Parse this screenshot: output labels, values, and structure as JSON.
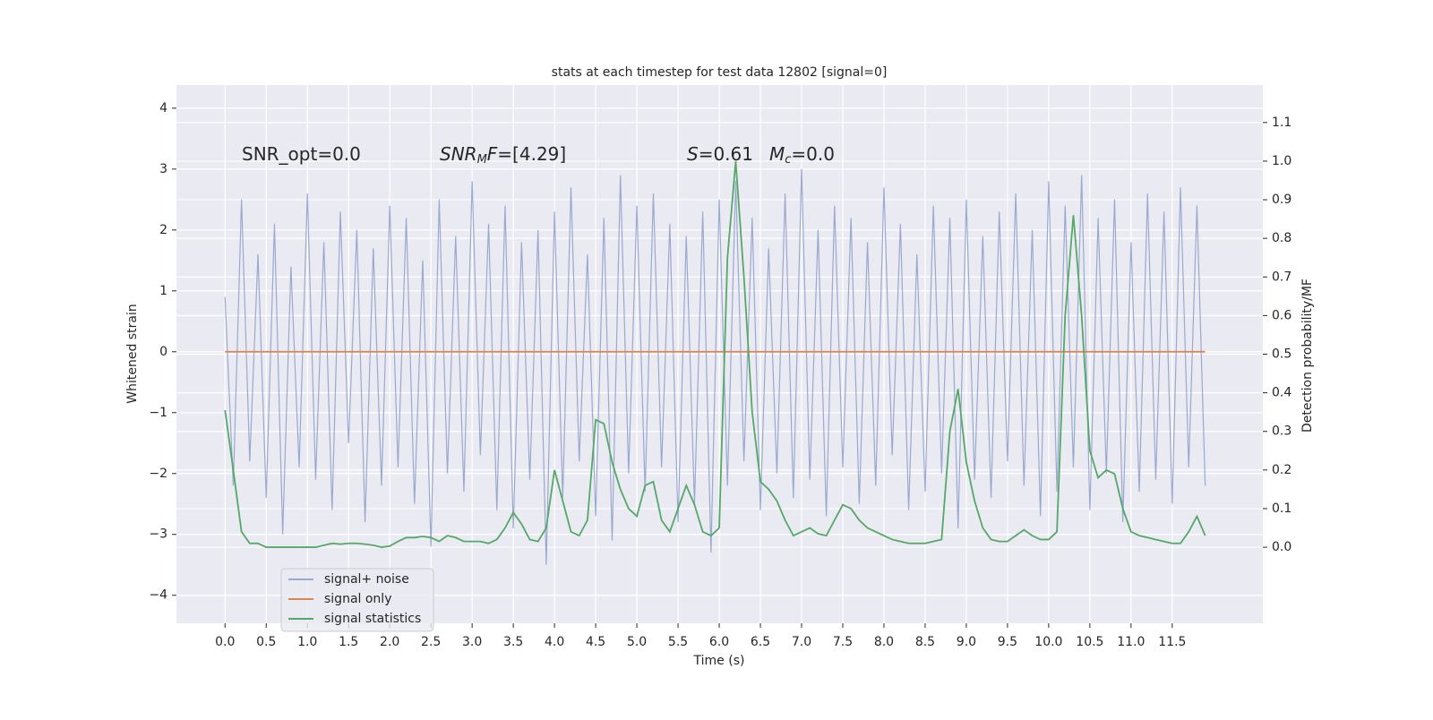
{
  "chart_data": {
    "type": "line",
    "title": "stats at each timestep for test data 12802 [signal=0]",
    "xlabel": "Time (s)",
    "ylabel": "Whitened strain",
    "y2label": "Detection probability/MF",
    "annotations": [
      [
        {
          "text": "SNR_opt=0.0"
        }
      ],
      [
        {
          "text": "SNR",
          "style": "italic"
        },
        {
          "text": "M",
          "style": "sub"
        },
        {
          "text": "F",
          "style": "italic"
        },
        {
          "text": "=[4.29]"
        }
      ],
      [
        {
          "text": "S",
          "style": "italic"
        },
        {
          "text": "=0.61"
        }
      ],
      [
        {
          "text": "M",
          "style": "italic"
        },
        {
          "text": "c",
          "style": "sub"
        },
        {
          "text": "=0.0"
        }
      ]
    ],
    "x": [
      0.0,
      0.1,
      0.2,
      0.3,
      0.4,
      0.5,
      0.6,
      0.7,
      0.8,
      0.9,
      1.0,
      1.1,
      1.2,
      1.3,
      1.4,
      1.5,
      1.6,
      1.7,
      1.8,
      1.9,
      2.0,
      2.1,
      2.2,
      2.3,
      2.4,
      2.5,
      2.6,
      2.7,
      2.8,
      2.9,
      3.0,
      3.1,
      3.2,
      3.3,
      3.4,
      3.5,
      3.6,
      3.7,
      3.8,
      3.9,
      4.0,
      4.1,
      4.2,
      4.3,
      4.4,
      4.5,
      4.6,
      4.7,
      4.8,
      4.9,
      5.0,
      5.1,
      5.2,
      5.3,
      5.4,
      5.5,
      5.6,
      5.7,
      5.8,
      5.9,
      6.0,
      6.1,
      6.2,
      6.3,
      6.4,
      6.5,
      6.6,
      6.7,
      6.8,
      6.9,
      7.0,
      7.1,
      7.2,
      7.3,
      7.4,
      7.5,
      7.6,
      7.7,
      7.8,
      7.9,
      8.0,
      8.1,
      8.2,
      8.3,
      8.4,
      8.5,
      8.6,
      8.7,
      8.8,
      8.9,
      9.0,
      9.1,
      9.2,
      9.3,
      9.4,
      9.5,
      9.6,
      9.7,
      9.8,
      9.9,
      10.0,
      10.1,
      10.2,
      10.3,
      10.4,
      10.5,
      10.6,
      10.7,
      10.8,
      10.9,
      11.0,
      11.1,
      11.2,
      11.3,
      11.4,
      11.5,
      11.6,
      11.7,
      11.8,
      11.9
    ],
    "series": [
      {
        "name": "signal+ noise",
        "color": "#8c9ec9",
        "values": [
          0.9,
          -2.2,
          2.5,
          -1.8,
          1.6,
          -2.4,
          2.1,
          -3.0,
          1.4,
          -1.9,
          2.6,
          -2.1,
          1.8,
          -2.6,
          2.3,
          -1.5,
          2.0,
          -2.8,
          1.7,
          -2.2,
          2.4,
          -1.9,
          2.2,
          -2.5,
          1.5,
          -3.2,
          2.5,
          -2.0,
          1.9,
          -2.3,
          2.8,
          -1.7,
          2.1,
          -2.6,
          2.4,
          -2.9,
          1.8,
          -2.1,
          2.0,
          -3.5,
          2.3,
          -2.4,
          2.7,
          -1.8,
          1.6,
          -2.7,
          2.2,
          -3.1,
          2.9,
          -2.0,
          2.4,
          -2.3,
          2.6,
          -1.9,
          2.1,
          -2.8,
          1.9,
          -2.5,
          2.3,
          -3.3,
          2.5,
          -2.2,
          2.8,
          -1.8,
          2.2,
          -2.6,
          1.7,
          -2.0,
          2.6,
          -2.4,
          3.0,
          -2.1,
          2.0,
          -2.7,
          2.4,
          -1.9,
          2.2,
          -2.5,
          1.8,
          -2.2,
          2.7,
          -1.7,
          2.1,
          -2.6,
          1.6,
          -2.3,
          2.4,
          -2.0,
          2.2,
          -2.9,
          2.5,
          -2.1,
          1.9,
          -2.4,
          2.3,
          -1.8,
          2.6,
          -2.2,
          2.0,
          -2.7,
          2.8,
          -2.3,
          2.4,
          -1.9,
          2.9,
          -2.6,
          2.2,
          -2.0,
          2.5,
          -2.8,
          1.8,
          -2.3,
          2.6,
          -2.1,
          2.3,
          -2.5,
          2.7,
          -1.9,
          2.4,
          -2.2
        ]
      },
      {
        "name": "signal only",
        "color": "#dd8452",
        "values": [
          0,
          0,
          0,
          0,
          0,
          0,
          0,
          0,
          0,
          0,
          0,
          0,
          0,
          0,
          0,
          0,
          0,
          0,
          0,
          0,
          0,
          0,
          0,
          0,
          0,
          0,
          0,
          0,
          0,
          0,
          0,
          0,
          0,
          0,
          0,
          0,
          0,
          0,
          0,
          0,
          0,
          0,
          0,
          0,
          0,
          0,
          0,
          0,
          0,
          0,
          0,
          0,
          0,
          0,
          0,
          0,
          0,
          0,
          0,
          0,
          0,
          0,
          0,
          0,
          0,
          0,
          0,
          0,
          0,
          0,
          0,
          0,
          0,
          0,
          0,
          0,
          0,
          0,
          0,
          0,
          0,
          0,
          0,
          0,
          0,
          0,
          0,
          0,
          0,
          0,
          0,
          0,
          0,
          0,
          0,
          0,
          0,
          0,
          0,
          0,
          0,
          0,
          0,
          0,
          0,
          0,
          0,
          0,
          0,
          0,
          0,
          0,
          0,
          0,
          0,
          0,
          0,
          0,
          0,
          0
        ]
      },
      {
        "name": "signal statistics",
        "color": "#55a868",
        "axis": "y2",
        "values": [
          0.355,
          0.2,
          0.04,
          0.01,
          0.01,
          0.0,
          0.0,
          0.0,
          0.0,
          0.0,
          0.0,
          0.0,
          0.005,
          0.01,
          0.008,
          0.01,
          0.01,
          0.008,
          0.005,
          0.0,
          0.003,
          0.015,
          0.025,
          0.025,
          0.028,
          0.025,
          0.015,
          0.03,
          0.025,
          0.015,
          0.015,
          0.015,
          0.01,
          0.02,
          0.05,
          0.09,
          0.06,
          0.02,
          0.015,
          0.05,
          0.2,
          0.12,
          0.04,
          0.03,
          0.07,
          0.33,
          0.32,
          0.22,
          0.15,
          0.1,
          0.08,
          0.16,
          0.17,
          0.07,
          0.04,
          0.1,
          0.16,
          0.11,
          0.04,
          0.03,
          0.05,
          0.75,
          1.0,
          0.7,
          0.35,
          0.17,
          0.15,
          0.12,
          0.07,
          0.03,
          0.04,
          0.05,
          0.035,
          0.03,
          0.07,
          0.11,
          0.1,
          0.07,
          0.05,
          0.04,
          0.03,
          0.02,
          0.015,
          0.01,
          0.01,
          0.01,
          0.015,
          0.02,
          0.3,
          0.41,
          0.22,
          0.12,
          0.05,
          0.02,
          0.015,
          0.015,
          0.03,
          0.045,
          0.03,
          0.02,
          0.02,
          0.04,
          0.6,
          0.86,
          0.6,
          0.25,
          0.18,
          0.2,
          0.19,
          0.1,
          0.04,
          0.03,
          0.025,
          0.02,
          0.015,
          0.01,
          0.01,
          0.04,
          0.08,
          0.03
        ]
      }
    ],
    "xlim": [
      -0.59,
      12.6
    ],
    "ylim": [
      -4.46,
      4.38
    ],
    "y2lim": [
      -0.197,
      1.197
    ],
    "xticks": [
      {
        "value": 0,
        "label": "0.0"
      },
      {
        "value": 0.5,
        "label": "0.5"
      },
      {
        "value": 1,
        "label": "1.0"
      },
      {
        "value": 1.5,
        "label": "1.5"
      },
      {
        "value": 2,
        "label": "2.0"
      },
      {
        "value": 2.5,
        "label": "2.5"
      },
      {
        "value": 3,
        "label": "3.0"
      },
      {
        "value": 3.5,
        "label": "3.5"
      },
      {
        "value": 4,
        "label": "4.0"
      },
      {
        "value": 4.5,
        "label": "4.5"
      },
      {
        "value": 5,
        "label": "5.0"
      },
      {
        "value": 5.5,
        "label": "5.5"
      },
      {
        "value": 6,
        "label": "6.0"
      },
      {
        "value": 6.5,
        "label": "6.5"
      },
      {
        "value": 7,
        "label": "7.0"
      },
      {
        "value": 7.5,
        "label": "7.5"
      },
      {
        "value": 8,
        "label": "8.0"
      },
      {
        "value": 8.5,
        "label": "8.5"
      },
      {
        "value": 9,
        "label": "9.0"
      },
      {
        "value": 9.5,
        "label": "9.5"
      },
      {
        "value": 10,
        "label": "10.0"
      },
      {
        "value": 10.5,
        "label": "10.5"
      },
      {
        "value": 11,
        "label": "11.0"
      },
      {
        "value": 11.5,
        "label": "11.5"
      }
    ],
    "yticks": [
      {
        "value": -4,
        "label": "−4"
      },
      {
        "value": -3,
        "label": "−3"
      },
      {
        "value": -2,
        "label": "−2"
      },
      {
        "value": -1,
        "label": "−1"
      },
      0,
      1,
      2,
      3,
      4
    ],
    "y2ticks": [
      {
        "value": 0,
        "label": "0.0"
      },
      {
        "value": 0.1,
        "label": "0.1"
      },
      {
        "value": 0.2,
        "label": "0.2"
      },
      {
        "value": 0.3,
        "label": "0.3"
      },
      {
        "value": 0.4,
        "label": "0.4"
      },
      {
        "value": 0.5,
        "label": "0.5"
      },
      {
        "value": 0.6,
        "label": "0.6"
      },
      {
        "value": 0.7,
        "label": "0.7"
      },
      {
        "value": 0.8,
        "label": "0.8"
      },
      {
        "value": 0.9,
        "label": "0.9"
      },
      {
        "value": 1,
        "label": "1.0"
      },
      {
        "value": 1.1,
        "label": "1.1"
      }
    ],
    "grid": true,
    "legend": "lower left"
  }
}
